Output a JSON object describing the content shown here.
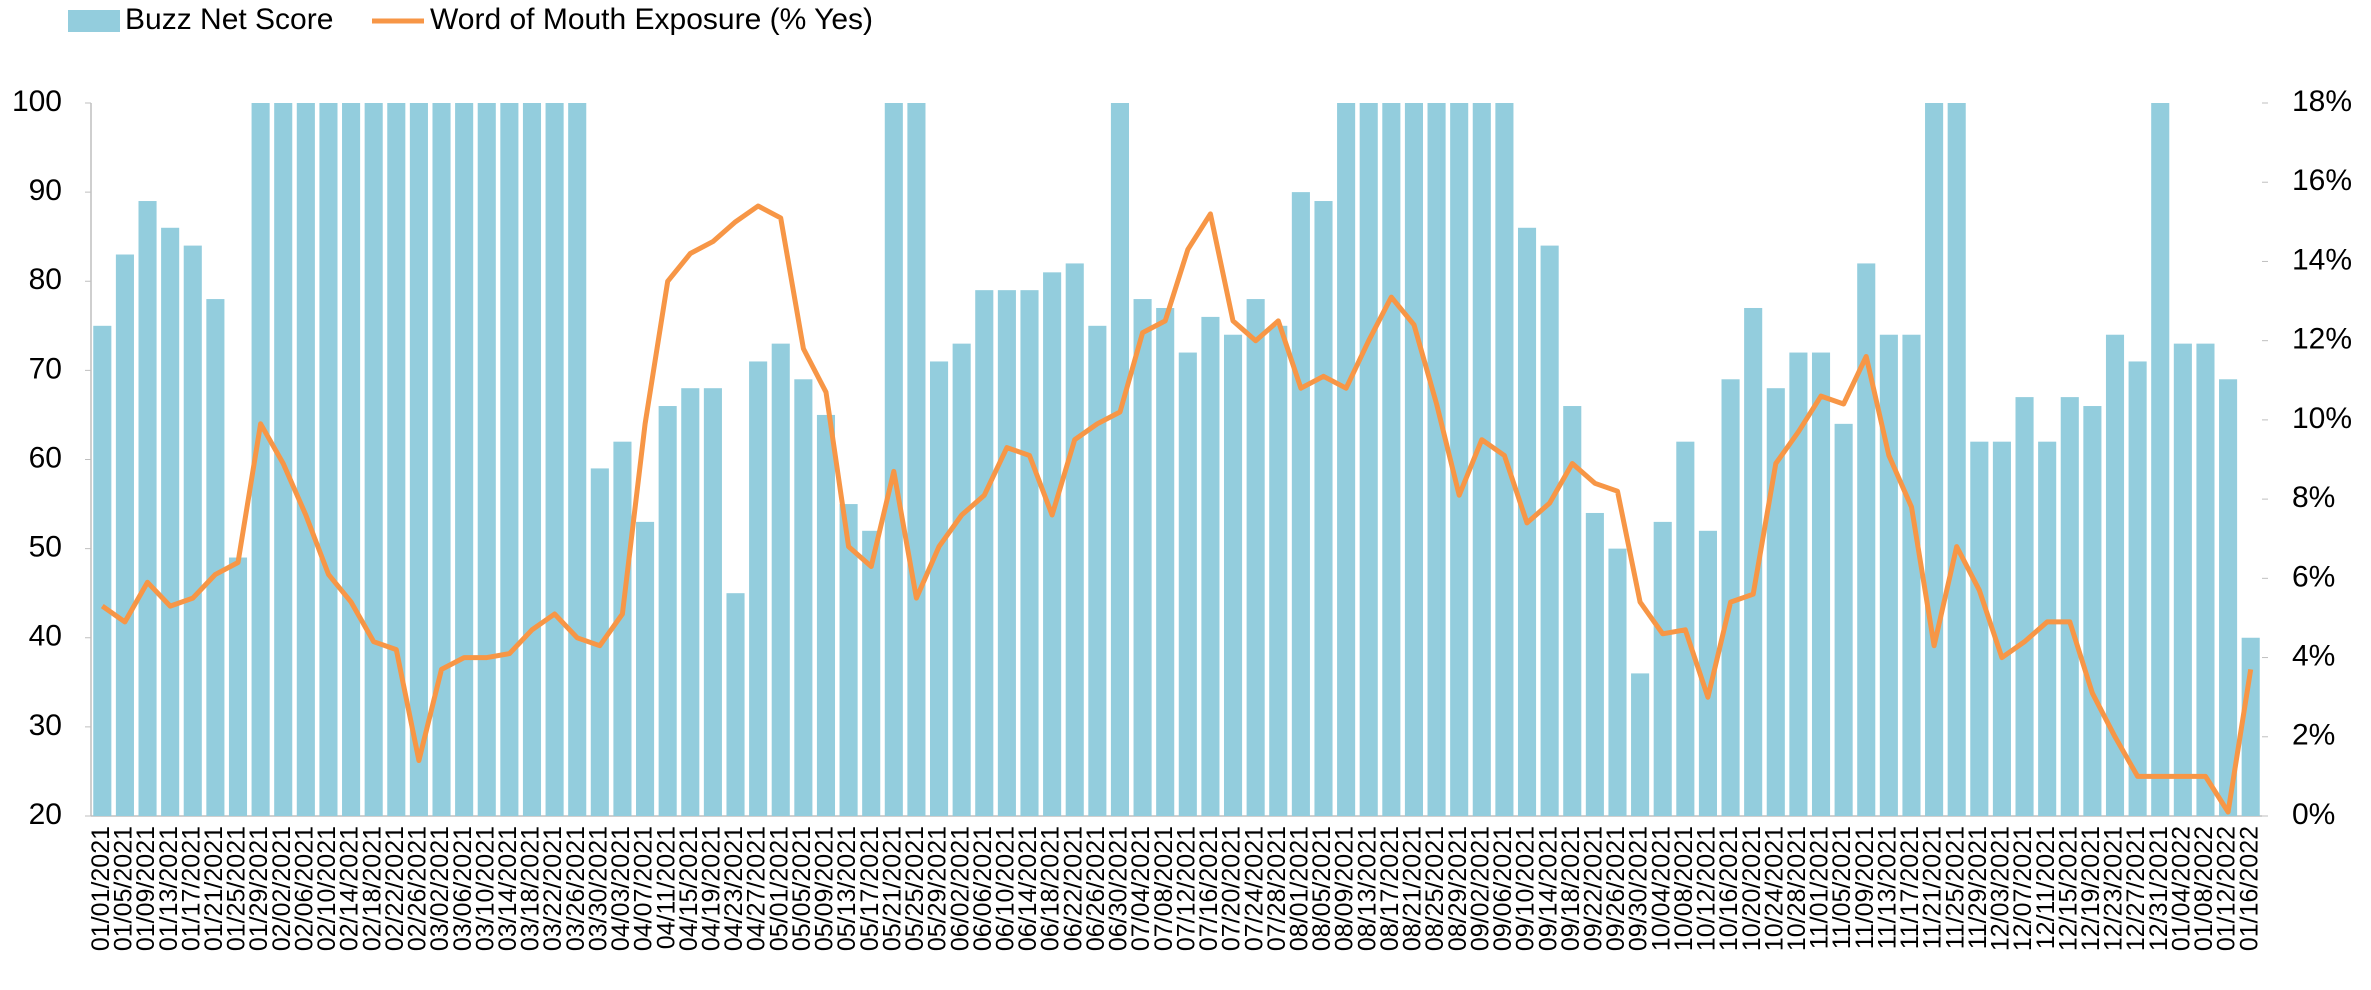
{
  "chart_data": {
    "type": "bar-line",
    "categories": [
      "01/01/2021",
      "01/05/2021",
      "01/09/2021",
      "01/13/2021",
      "01/17/2021",
      "01/21/2021",
      "01/25/2021",
      "01/29/2021",
      "02/02/2021",
      "02/06/2021",
      "02/10/2021",
      "02/14/2021",
      "02/18/2021",
      "02/22/2021",
      "02/26/2021",
      "03/02/2021",
      "03/06/2021",
      "03/10/2021",
      "03/14/2021",
      "03/18/2021",
      "03/22/2021",
      "03/26/2021",
      "03/30/2021",
      "04/03/2021",
      "04/07/2021",
      "04/11/2021",
      "04/15/2021",
      "04/19/2021",
      "04/23/2021",
      "04/27/2021",
      "05/01/2021",
      "05/05/2021",
      "05/09/2021",
      "05/13/2021",
      "05/17/2021",
      "05/21/2021",
      "05/25/2021",
      "05/29/2021",
      "06/02/2021",
      "06/06/2021",
      "06/10/2021",
      "06/14/2021",
      "06/18/2021",
      "06/22/2021",
      "06/26/2021",
      "06/30/2021",
      "07/04/2021",
      "07/08/2021",
      "07/12/2021",
      "07/16/2021",
      "07/20/2021",
      "07/24/2021",
      "07/28/2021",
      "08/01/2021",
      "08/05/2021",
      "08/09/2021",
      "08/13/2021",
      "08/17/2021",
      "08/21/2021",
      "08/25/2021",
      "08/29/2021",
      "09/02/2021",
      "09/06/2021",
      "09/10/2021",
      "09/14/2021",
      "09/18/2021",
      "09/22/2021",
      "09/26/2021",
      "09/30/2021",
      "10/04/2021",
      "10/08/2021",
      "10/12/2021",
      "10/16/2021",
      "10/20/2021",
      "10/24/2021",
      "10/28/2021",
      "11/01/2021",
      "11/05/2021",
      "11/09/2021",
      "11/13/2021",
      "11/17/2021",
      "11/21/2021",
      "11/25/2021",
      "11/29/2021",
      "12/03/2021",
      "12/07/2021",
      "12/11/2021",
      "12/15/2021",
      "12/19/2021",
      "12/23/2021",
      "12/27/2021",
      "12/31/2021",
      "01/04/2022",
      "01/08/2022",
      "01/12/2022",
      "01/16/2022"
    ],
    "series": [
      {
        "name": "Buzz Net Score",
        "type": "bar",
        "color": "#93cddd",
        "values": [
          75,
          83,
          89,
          86,
          84,
          78,
          49,
          100,
          100,
          100,
          100,
          100,
          100,
          100,
          100,
          100,
          100,
          100,
          100,
          100,
          100,
          100,
          59,
          62,
          53,
          66,
          68,
          68,
          45,
          71,
          73,
          69,
          65,
          55,
          52,
          100,
          100,
          71,
          73,
          79,
          79,
          79,
          81,
          82,
          75,
          100,
          78,
          77,
          72,
          76,
          74,
          78,
          75,
          90,
          89,
          100,
          100,
          100,
          100,
          100,
          100,
          100,
          100,
          86,
          84,
          66,
          54,
          50,
          36,
          53,
          62,
          52,
          69,
          77,
          68,
          72,
          72,
          64,
          82,
          74,
          74,
          100,
          100,
          62,
          62,
          67,
          62,
          67,
          66,
          74,
          71,
          100,
          73,
          73,
          69,
          40
        ]
      },
      {
        "name": "Word of Mouth Exposure (% Yes)",
        "type": "line",
        "axis": "y2",
        "color": "#f79646",
        "values": [
          5.3,
          4.9,
          5.9,
          5.3,
          5.5,
          6.1,
          6.4,
          9.9,
          8.9,
          7.6,
          6.1,
          5.4,
          4.4,
          4.2,
          1.4,
          3.7,
          4.0,
          4.0,
          4.1,
          4.7,
          5.1,
          4.5,
          4.3,
          5.1,
          9.9,
          13.5,
          14.2,
          14.5,
          15.0,
          15.4,
          15.1,
          11.8,
          10.7,
          6.8,
          6.3,
          8.7,
          5.5,
          6.8,
          7.6,
          8.1,
          9.3,
          9.1,
          7.6,
          9.5,
          9.9,
          10.2,
          12.2,
          12.5,
          14.3,
          15.2,
          12.5,
          12.0,
          12.5,
          10.8,
          11.1,
          10.8,
          12.0,
          13.1,
          12.4,
          10.4,
          8.1,
          9.5,
          9.1,
          7.4,
          7.9,
          8.9,
          8.4,
          8.2,
          5.4,
          4.6,
          4.7,
          3.0,
          5.4,
          5.6,
          8.9,
          9.7,
          10.6,
          10.4,
          11.6,
          9.1,
          7.8,
          4.3,
          6.8,
          5.7,
          4.0,
          4.4,
          4.9,
          4.9,
          3.1,
          2.0,
          1.0,
          1.0,
          1.0,
          1.0,
          0.1,
          3.7
        ]
      }
    ],
    "ylim": [
      20,
      100
    ],
    "yticks": [
      20,
      30,
      40,
      50,
      60,
      70,
      80,
      90,
      100
    ],
    "y2lim": [
      0,
      18
    ],
    "y2ticks": [
      {
        "value": 0,
        "label": "0%"
      },
      {
        "value": 2,
        "label": "2%"
      },
      {
        "value": 4,
        "label": "4%"
      },
      {
        "value": 6,
        "label": "6%"
      },
      {
        "value": 8,
        "label": "8%"
      },
      {
        "value": 10,
        "label": "10%"
      },
      {
        "value": 12,
        "label": "12%"
      },
      {
        "value": 14,
        "label": "14%"
      },
      {
        "value": 16,
        "label": "16%"
      },
      {
        "value": 18,
        "label": "18%"
      }
    ],
    "legend": "top-left",
    "grid": false
  }
}
